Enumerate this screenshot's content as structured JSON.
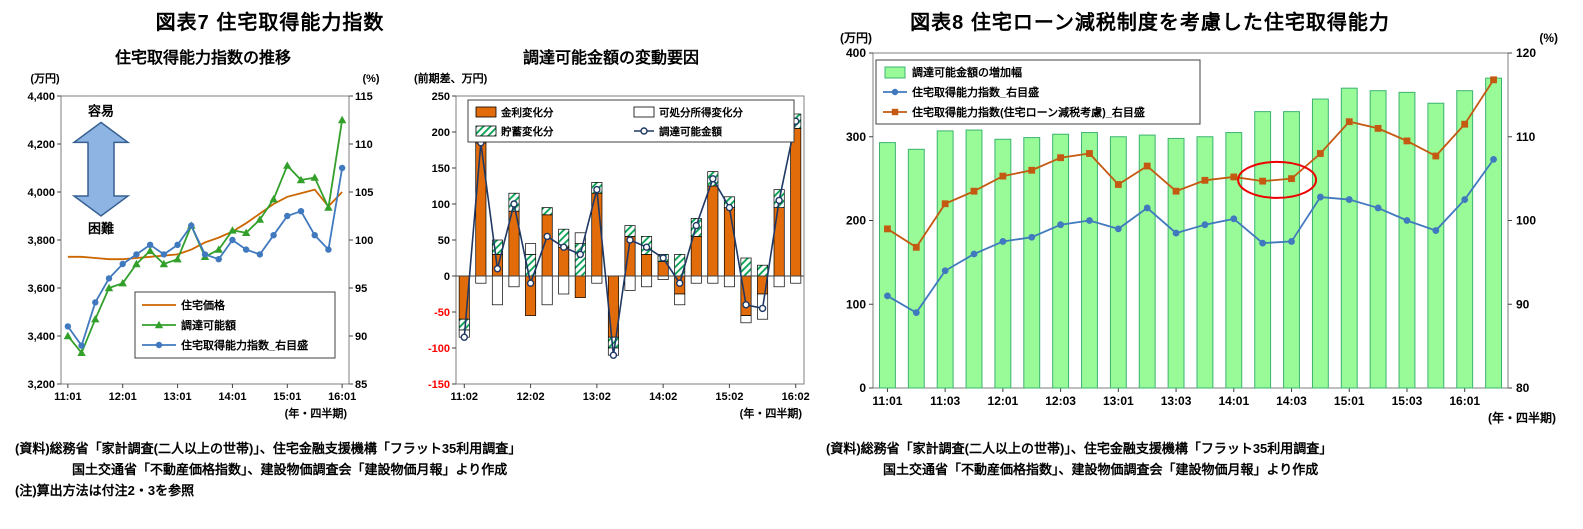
{
  "fig7": {
    "title": "図表7  住宅取得能力指数",
    "source_line1": "(資料)総務省「家計調査(二人以上の世帯)」、住宅金融支援機構「フラット35利用調査」",
    "source_line2": "国土交通省「不動産価格指数」、建設物価調査会「建設物価月報」より作成",
    "note": "(注)算出方法は付注2・3を参照"
  },
  "fig8": {
    "title": "図表8  住宅ローン減税制度を考慮した住宅取得能力",
    "source_line1": "(資料)総務省「家計調査(二人以上の世帯)」、住宅金融支援機構「フラット35利用調査」",
    "source_line2": "国土交通省「不動産価格指数」、建設物価調査会「建設物価月報」より作成"
  },
  "chart_data": [
    {
      "id": "chart1",
      "type": "line",
      "title": "住宅取得能力指数の推移",
      "unit_left": "(万円)",
      "unit_right": "(%)",
      "x_note": "(年・四半期)",
      "x_tick_every": 4,
      "categories": [
        "11:01",
        "11:02",
        "11:03",
        "11:04",
        "12:01",
        "12:02",
        "12:03",
        "12:04",
        "13:01",
        "13:02",
        "13:03",
        "13:04",
        "14:01",
        "14:02",
        "14:03",
        "14:04",
        "15:01",
        "15:02",
        "15:03",
        "15:04",
        "16:01"
      ],
      "y_left": {
        "min": 3200,
        "max": 4400,
        "step": 200
      },
      "y_right": {
        "min": 85,
        "max": 115,
        "step": 5
      },
      "series": [
        {
          "name": "住宅価格",
          "axis": "left",
          "color": "#cc6600",
          "marker": "none",
          "values": [
            3730,
            3730,
            3725,
            3720,
            3720,
            3725,
            3730,
            3735,
            3740,
            3760,
            3790,
            3810,
            3835,
            3870,
            3910,
            3950,
            3980,
            3995,
            4010,
            3940,
            4000
          ]
        },
        {
          "name": "調達可能額",
          "axis": "left",
          "color": "#33a02c",
          "marker": "triangle",
          "values": [
            3400,
            3330,
            3470,
            3600,
            3620,
            3700,
            3755,
            3700,
            3720,
            3860,
            3730,
            3760,
            3840,
            3830,
            3885,
            3970,
            4110,
            4050,
            4060,
            3935,
            4300
          ]
        },
        {
          "name": "住宅取得能力指数_右目盛",
          "axis": "right",
          "color": "#4079bd",
          "marker": "circle",
          "values": [
            91,
            89,
            93.5,
            96,
            97.5,
            98.5,
            99.5,
            98.5,
            99.5,
            101.5,
            98.5,
            98,
            100,
            99,
            98.5,
            100.5,
            102.5,
            103,
            100.5,
            99,
            107.5
          ]
        }
      ],
      "annotation": {
        "easy": "容易",
        "hard": "困難",
        "top_value": 4290,
        "bottom_value": 3900,
        "arrow_color": "#8db4e2",
        "arrow_border": "#376092"
      }
    },
    {
      "id": "chart2",
      "type": "stacked-bar-line",
      "title": "調達可能金額の変動要因",
      "unit_left": "(前期差、万円)",
      "x_note": "(年・四半期)",
      "x_tick_every": 4,
      "hatch_color": "#00a050",
      "categories": [
        "11:02",
        "11:03",
        "11:04",
        "12:01",
        "12:02",
        "12:03",
        "12:04",
        "13:01",
        "13:02",
        "13:03",
        "13:04",
        "14:01",
        "14:02",
        "14:03",
        "14:04",
        "15:01",
        "15:02",
        "15:03",
        "15:04",
        "16:01",
        "16:02"
      ],
      "y_left": {
        "min": -150,
        "max": 250,
        "step": 50
      },
      "bar_series": [
        {
          "name": "金利変化分",
          "fill": "#e36c0a",
          "values": [
            -60,
            185,
            30,
            90,
            -55,
            85,
            40,
            -30,
            115,
            -85,
            55,
            30,
            20,
            -25,
            55,
            125,
            95,
            -55,
            -25,
            95,
            205
          ]
        },
        {
          "name": "貯蓄変化分",
          "fill": "hatch",
          "values": [
            -15,
            10,
            20,
            25,
            30,
            10,
            25,
            45,
            15,
            -15,
            15,
            25,
            10,
            30,
            25,
            20,
            15,
            25,
            15,
            25,
            20
          ]
        },
        {
          "name": "可処分所得変化分",
          "fill": "#ffffff",
          "values": [
            -10,
            -10,
            -40,
            -15,
            15,
            -40,
            -25,
            15,
            -10,
            -10,
            -20,
            -15,
            -5,
            -15,
            -10,
            -10,
            -15,
            -10,
            -35,
            -15,
            -10
          ]
        }
      ],
      "line_series": {
        "name": "調達可能金額",
        "color": "#1f3864",
        "marker": "circle-open",
        "values": [
          -85,
          185,
          10,
          100,
          -10,
          55,
          40,
          30,
          120,
          -110,
          50,
          40,
          25,
          -10,
          70,
          135,
          95,
          -40,
          -45,
          105,
          215
        ]
      }
    },
    {
      "id": "chart3",
      "type": "bar-line-combo",
      "unit_left": "(万円)",
      "unit_right": "(%)",
      "x_note": "(年・四半期)",
      "x_tick_every": 2,
      "categories": [
        "11:01",
        "11:02",
        "11:03",
        "11:04",
        "12:01",
        "12:02",
        "12:03",
        "12:04",
        "13:01",
        "13:02",
        "13:03",
        "13:04",
        "14:01",
        "14:02",
        "14:03",
        "14:04",
        "15:01",
        "15:02",
        "15:03",
        "15:04",
        "16:01",
        "16:02"
      ],
      "y_left": {
        "min": 0,
        "max": 400,
        "step": 100
      },
      "y_right": {
        "min": 80,
        "max": 120,
        "step": 10
      },
      "bar_series": {
        "name": "調達可能金額の増加幅",
        "fill": "#98fb98",
        "stroke": "#3cb371",
        "values": [
          293,
          285,
          307,
          308,
          297,
          299,
          303,
          305,
          300,
          302,
          298,
          300,
          305,
          330,
          330,
          345,
          358,
          355,
          353,
          340,
          355,
          370
        ]
      },
      "line_series": [
        {
          "name": "住宅取得能力指数_右目盛",
          "color": "#4079bd",
          "marker": "circle",
          "values": [
            91,
            89,
            94,
            96,
            97.5,
            98,
            99.5,
            100,
            99,
            101.5,
            98.5,
            99.5,
            100.2,
            97.3,
            97.5,
            102.8,
            102.5,
            101.5,
            100,
            98.8,
            102.5,
            107.3
          ]
        },
        {
          "name": "住宅取得能力指数(住宅ローン減税考慮)_右目盛",
          "color": "#c45911",
          "marker": "square",
          "values": [
            99,
            96.8,
            102,
            103.5,
            105.3,
            106,
            107.5,
            108,
            104.3,
            106.5,
            103.5,
            104.8,
            105.2,
            104.7,
            105,
            108,
            111.8,
            111,
            109.5,
            107.7,
            111.5,
            116.8
          ]
        }
      ],
      "highlight": {
        "color": "#ee0000",
        "index_from": 13,
        "index_to": 14
      }
    }
  ]
}
